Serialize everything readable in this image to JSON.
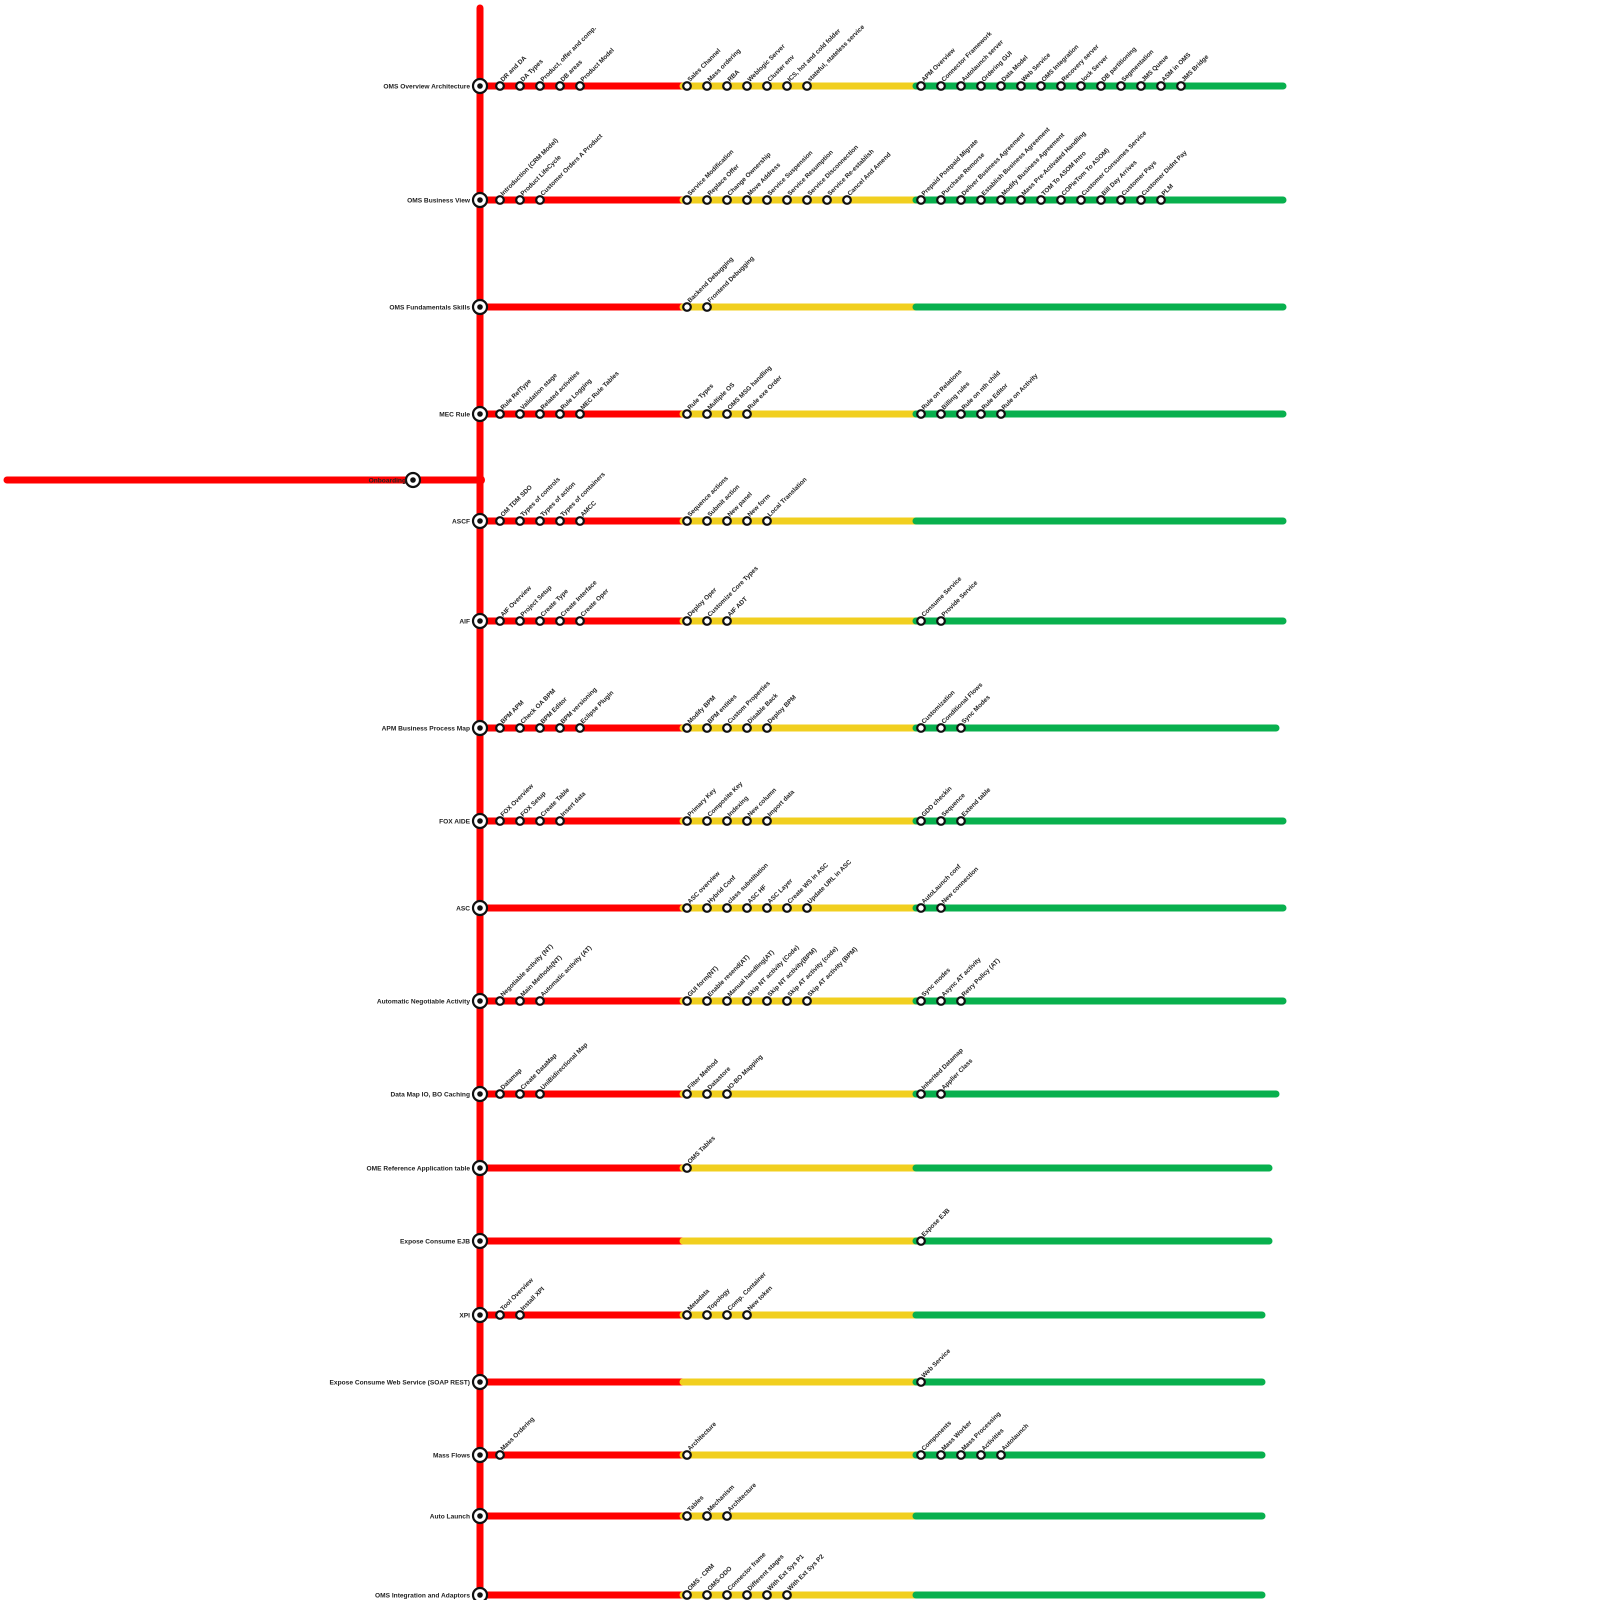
{
  "colors": {
    "red": "#ff0000",
    "yellow": "#f1cf1f",
    "green": "#08b04e",
    "station_fill": "#ffffff",
    "station_stroke": "#111111"
  },
  "onboarding": {
    "label": "Onboarding"
  },
  "lines": [
    {
      "label": "OMS Overview  Architecture",
      "red": [
        "DR and DA",
        "DA Types",
        "Product, offer and comp.",
        "DB areas",
        "Product Model"
      ],
      "yellow": [
        "Sales Channel",
        "Mass ordering",
        "RBA",
        "Weblogic Server",
        "Cluster env",
        "ICS, hot and cold folder",
        "stateful, stateless service"
      ],
      "green": [
        "APM Overview",
        "Connector Framework",
        "Autolaunch server",
        "Ordering GUI",
        "Data Model",
        "Web Service",
        "OMS Integration",
        "Recovery server",
        "lock Server",
        "DB partitioning",
        "Segmentation",
        "JMS Queue",
        "ASM in OMS",
        "JMS Bridge"
      ]
    },
    {
      "label": "OMS Business View",
      "red": [
        "Introduction (CRM Model)",
        "Product LifeCycle",
        "Customer Orders A Product"
      ],
      "yellow": [
        "Service Modification",
        "Replace Offer",
        "Change Ownership",
        "Move Address",
        "Service Suspension",
        "Service Resumption",
        "Service Disconnection",
        "Service Re-establish",
        "Cancel And Amend"
      ],
      "green": [
        "Prepaid Postpaid Migrate",
        "Purchase Remorse",
        "Deliver Business Agreement",
        "Establish Business Agreement",
        "Modify Business Agreement",
        "Mass Pre-Activated Handling",
        "TOM To ASOM Intro",
        "COPieTom To ASOM)",
        "Customer Consumes Service",
        "Bill Day Arrives",
        "Customer Pays",
        "Customer Didnt Pay",
        "PLM"
      ]
    },
    {
      "label": "OMS Fundamentals Skills",
      "red": [],
      "yellow": [
        "Backend Debugging",
        "Frontend Debugging"
      ],
      "green": []
    },
    {
      "label": "MEC Rule",
      "red": [
        "Rule RefType",
        "Validation stage",
        "Related activities",
        "Rule Logging",
        "MEC Rule Tables"
      ],
      "yellow": [
        "Rule Types",
        "Multiple OS",
        "OMS MSG handling",
        "Rule exe Order"
      ],
      "green": [
        "Rule on Relations",
        "Billing rules",
        "Rule on nth child",
        "Rule Editor",
        "Rule on Activity"
      ]
    },
    {
      "label": "ASCF",
      "red": [
        "OM TDM SDO",
        "Types of controls",
        "Types of action",
        "Types of containers",
        "AMCC"
      ],
      "yellow": [
        "Sequence actions",
        "Submit action",
        "New panel",
        "New form",
        "Local Translation"
      ],
      "green": []
    },
    {
      "label": "AIF",
      "red": [
        "AIF Overview",
        "Project Setup",
        "Create Type",
        "Create Interface",
        "Create Oper"
      ],
      "yellow": [
        "Deploy Oper",
        "Customize Core Types",
        "AIF ADT"
      ],
      "green": [
        "Consume Service",
        "Provide Service"
      ]
    },
    {
      "label": "APM  Business Process Map",
      "red": [
        "BPM  APM",
        "Check OA BPM",
        "BPM Editor",
        "BPM versioning",
        "Eclipse Plugin"
      ],
      "yellow": [
        "Modify BPM",
        "BPM entities",
        "Custom Properties",
        "Disable Back",
        "Deploy BPM"
      ],
      "green": [
        "Customization",
        "Conditional Flows",
        "Sync Modes"
      ]
    },
    {
      "label": "FOX AIDE",
      "red": [
        "FOX Overview",
        "FOX Setup",
        "Create Table",
        "Insert data"
      ],
      "yellow": [
        "Primary Key",
        "Composite Key",
        "Indexing",
        "New column",
        "Import data"
      ],
      "green": [
        "GDD checkin",
        "Sequence",
        "Extend table"
      ]
    },
    {
      "label": "ASC",
      "red": [],
      "yellow": [
        "ASC overview",
        "Hybrid Conf",
        "class substitution",
        "ASC HF",
        "ASC Layer",
        "Create WS in ASC",
        "Update URL in ASC"
      ],
      "green": [
        "AutoLaunch conf",
        "New connection"
      ]
    },
    {
      "label": "Automatic  Negotiable Activity",
      "red": [
        "Negotiable activity (NT)",
        "Main Methods(NT)",
        "Automatic activity (AT)"
      ],
      "yellow": [
        "GUI form(NT)",
        "Enable resend(AT)",
        "Manual handling(AT)",
        "Skip NT activity (Code)",
        "Skip NT activity(BPM)",
        "Skip AT activity (code)",
        "Skip AT activity (BPM)"
      ],
      "green": [
        "Sync modes",
        "Async AT activity",
        "Retry Policy (AT)"
      ]
    },
    {
      "label": "Data Map  IO, BO Caching",
      "red": [
        "Datamap",
        "Create DataMap",
        "UniBidirectional Map"
      ],
      "yellow": [
        "Filter Method",
        "Datastore",
        "IO-BO Mapping"
      ],
      "green": [
        "Inherited Datamap",
        "Applier Class"
      ]
    },
    {
      "label": "OME Reference  Application table",
      "red": [],
      "yellow": [
        "OMS Tables"
      ],
      "green": []
    },
    {
      "label": "Expose Consume EJB",
      "red": [],
      "yellow": [],
      "green": [
        "Expose EJB"
      ]
    },
    {
      "label": "XPI",
      "red": [
        "Tool Overview",
        "Install XPI"
      ],
      "yellow": [
        "Metadata",
        "Topology",
        "Comp. Container",
        "New token"
      ],
      "green": []
    },
    {
      "label": "Expose Consume Web Service (SOAP REST)",
      "red": [],
      "yellow": [],
      "green": [
        "Web Service"
      ]
    },
    {
      "label": "Mass Flows",
      "red": [
        "Mass Ordering"
      ],
      "yellow": [
        "Architecture"
      ],
      "green": [
        "Components",
        "Mass Worker",
        "Mass Processing",
        "Activities",
        "Autolaunch"
      ]
    },
    {
      "label": "Auto Launch",
      "red": [],
      "yellow": [
        "Tables",
        "Mechanism",
        "Architecture"
      ],
      "green": []
    },
    {
      "label": "OMS Integration and Adaptors",
      "red": [],
      "yellow": [
        "OMS - CRM",
        "OMS-ODO",
        "Connector frame",
        "Different stages",
        "With Ext Sys P1",
        "With Ext Sys P2"
      ],
      "green": []
    }
  ]
}
